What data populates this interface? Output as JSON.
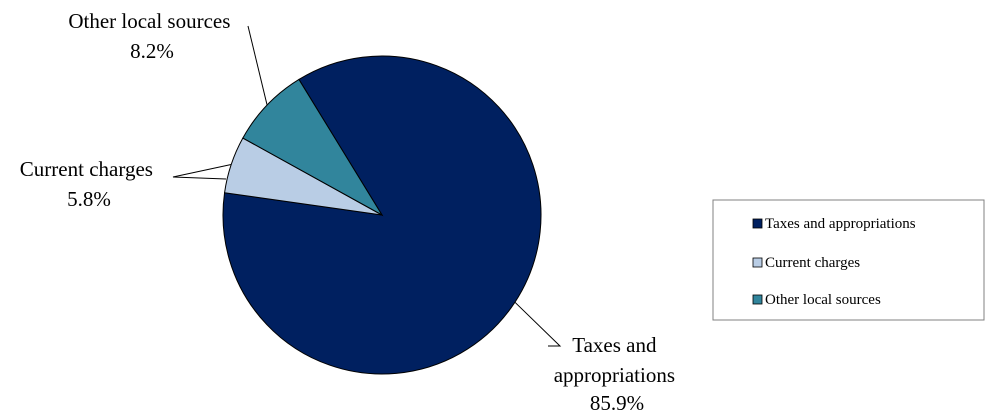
{
  "chart_data": {
    "type": "pie",
    "categories": [
      "Taxes and appropriations",
      "Current charges",
      "Other local sources"
    ],
    "values": [
      85.9,
      5.8,
      8.2
    ],
    "unit": "%",
    "data_labels": [
      {
        "lines": [
          "Taxes and",
          "appropriations",
          "85.9%"
        ]
      },
      {
        "lines": [
          "Current charges",
          "5.8%"
        ]
      },
      {
        "lines": [
          "Other local sources",
          "8.2%"
        ]
      }
    ],
    "colors": [
      "#002060",
      "#b9cde5",
      "#31859c"
    ],
    "legend": {
      "placement": "right",
      "entries": [
        "Taxes and appropriations",
        "Current charges",
        "Other local sources"
      ]
    },
    "title": "",
    "xlabel": "",
    "ylabel": ""
  }
}
